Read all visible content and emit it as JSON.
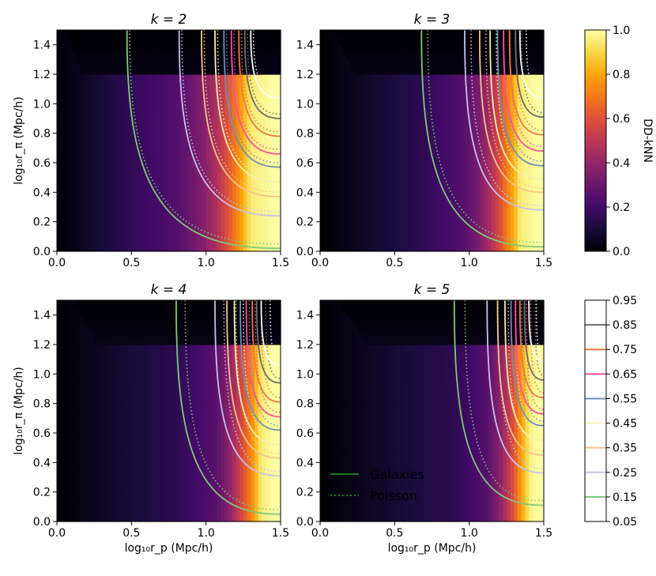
{
  "chart_data": {
    "type": "heatmap",
    "xlabel": "log₁₀r_p (Mpc/h)",
    "ylabel": "log₁₀r_π (Mpc/h)",
    "xlim": [
      0.0,
      1.5
    ],
    "ylim": [
      0.0,
      1.5
    ],
    "x_ticks": [
      "0.0",
      "0.5",
      "1.0",
      "1.5"
    ],
    "y_ticks": [
      "0.0",
      "0.2",
      "0.4",
      "0.6",
      "0.8",
      "1.0",
      "1.2",
      "1.4"
    ],
    "panels": [
      {
        "title": "k = 2",
        "k": 2,
        "galaxy_contour_x_at_y0": [
          0.47,
          0.82,
          0.97,
          1.06,
          1.12,
          1.17,
          1.22,
          1.26,
          1.3
        ],
        "galaxy_contour_y_at_x15": [
          0.02,
          0.24,
          0.37,
          0.47,
          0.57,
          0.66,
          0.78,
          0.9,
          1.04
        ]
      },
      {
        "title": "k = 3",
        "k": 3,
        "galaxy_contour_x_at_y0": [
          0.68,
          0.97,
          1.07,
          1.14,
          1.19,
          1.23,
          1.27,
          1.31,
          1.34
        ],
        "galaxy_contour_y_at_x15": [
          0.03,
          0.28,
          0.4,
          0.49,
          0.58,
          0.68,
          0.79,
          0.91,
          1.04
        ]
      },
      {
        "title": "k = 4",
        "k": 4,
        "galaxy_contour_x_at_y0": [
          0.8,
          1.06,
          1.14,
          1.19,
          1.23,
          1.27,
          1.31,
          1.34,
          1.37
        ],
        "galaxy_contour_y_at_x15": [
          0.05,
          0.31,
          0.43,
          0.52,
          0.62,
          0.71,
          0.81,
          0.94,
          1.06
        ]
      },
      {
        "title": "k = 5",
        "k": 5,
        "galaxy_contour_x_at_y0": [
          0.9,
          1.12,
          1.19,
          1.24,
          1.28,
          1.31,
          1.34,
          1.37,
          1.4
        ],
        "galaxy_contour_y_at_x15": [
          0.11,
          0.33,
          0.45,
          0.55,
          0.65,
          0.73,
          0.84,
          0.96,
          1.09
        ]
      }
    ],
    "colorbar": {
      "label": "DD-kNN",
      "range": [
        0.0,
        1.0
      ],
      "ticks": [
        "0.0",
        "0.2",
        "0.4",
        "0.6",
        "0.8",
        "1.0"
      ],
      "colormap": "inferno"
    },
    "contour_levels": {
      "values": [
        0.15,
        0.25,
        0.35,
        0.45,
        0.55,
        0.65,
        0.75,
        0.85,
        0.95
      ],
      "ticks": [
        "0.05",
        "0.15",
        "0.25",
        "0.35",
        "0.45",
        "0.55",
        "0.65",
        "0.75",
        "0.85",
        "0.95"
      ],
      "colors": [
        "#7ec87a",
        "#c8c0ea",
        "#f5c48a",
        "#f5f0b0",
        "#6f8fb8",
        "#ff4f9e",
        "#f07a40",
        "#6e6e6e",
        "#fbfbfb"
      ]
    },
    "legend": {
      "position": "lower-left of k = 5 panel",
      "entries": [
        {
          "label": "Galaxies",
          "style": "solid",
          "color": "#1f7a1f"
        },
        {
          "label": "Poisson",
          "style": "dotted",
          "color": "#1f7a1f"
        }
      ]
    }
  }
}
